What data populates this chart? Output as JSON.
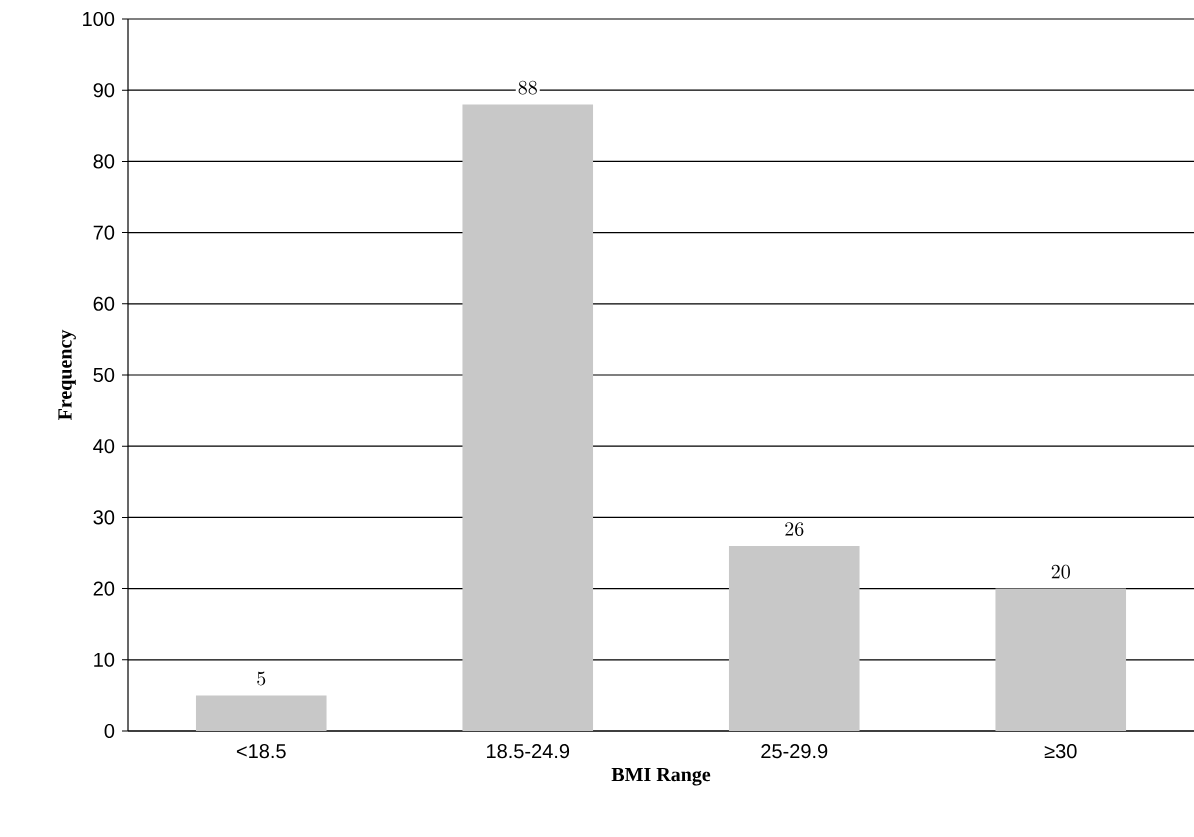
{
  "chart_data": {
    "type": "bar",
    "xlabel": "BMI Range",
    "ylabel": "Frequency",
    "categories": [
      "<18.5",
      "18.5-24.9",
      "25-29.9",
      "≥30"
    ],
    "values": [
      5,
      88,
      26,
      20
    ],
    "color": "#c8c8c8",
    "data_labels": true,
    "ylim": [
      0,
      100
    ],
    "yticks": [
      0,
      10,
      20,
      30,
      40,
      50,
      60,
      70,
      80,
      90,
      100
    ],
    "grid": "y"
  }
}
